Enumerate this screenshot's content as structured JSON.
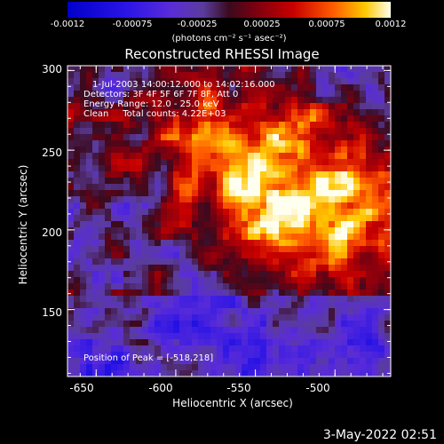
{
  "colorbar": {
    "ticks": [
      "-0.0012",
      "-0.00075",
      "-0.00025",
      "0.00025",
      "0.00075",
      "0.0012"
    ],
    "unit_label": "(photons cm⁻² s⁻¹ asec⁻²)",
    "min": -0.0012,
    "max": 0.0012
  },
  "chart_data": {
    "type": "heatmap",
    "title": "Reconstructed RHESSI Image",
    "xlabel": "Heliocentric X (arcsec)",
    "ylabel": "Heliocentric Y (arcsec)",
    "xlim": [
      -668,
      -465
    ],
    "ylim": [
      108,
      303
    ],
    "x_ticks": [
      -650,
      -600,
      -550,
      -500
    ],
    "y_ticks": [
      150,
      200,
      250,
      300
    ],
    "peak": [
      -518,
      218
    ],
    "annotations": {
      "line1": "1-Jul-2003 14:00:12.000 to 14:02:16.000",
      "line2": "Detectors: 3F 4F 5F 6F 7F 8F, Att 0",
      "line3": "Energy Range: 12.0 - 25.0 keV",
      "line4": "Clean     Total counts: 4.22E+03",
      "peak_text": "Position of Peak = [-518,218]"
    }
  },
  "footer": {
    "date": "3-May-2022 02:51"
  }
}
